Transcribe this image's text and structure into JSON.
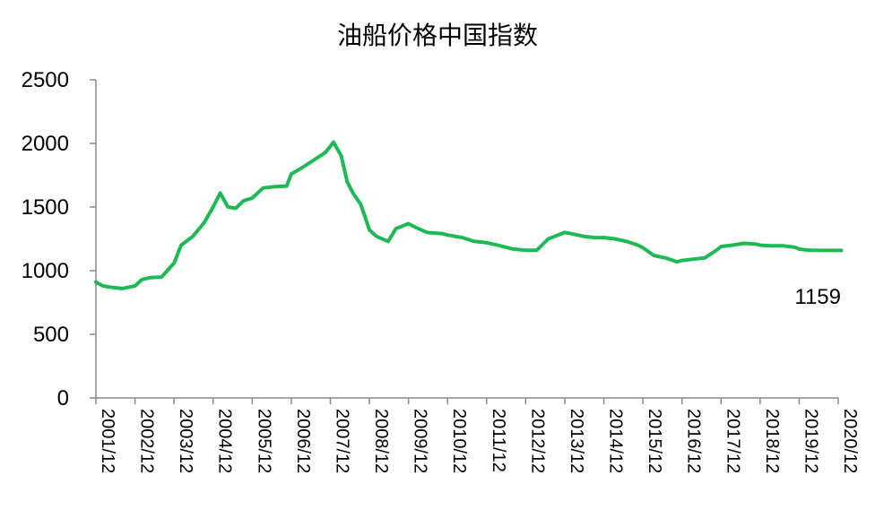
{
  "chart_data": {
    "type": "line",
    "title": "油船价格中国指数",
    "xlabel": "",
    "ylabel": "",
    "ylim": [
      0,
      2500
    ],
    "yticks": [
      "0",
      "500",
      "1000",
      "1500",
      "2000",
      "2500"
    ],
    "categories": [
      "2001/12",
      "2002/12",
      "2003/12",
      "2004/12",
      "2005/12",
      "2006/12",
      "2007/12",
      "2008/12",
      "2009/12",
      "2010/12",
      "2011/12",
      "2012/12",
      "2013/12",
      "2014/12",
      "2015/12",
      "2016/12",
      "2017/12",
      "2018/12",
      "2019/12",
      "2020/12"
    ],
    "grid": false,
    "legend": "none",
    "end_label": "1159",
    "series": [
      {
        "color": "#1db954",
        "x": [
          2001.92,
          2002.1,
          2002.3,
          2002.6,
          2002.92,
          2003.1,
          2003.3,
          2003.6,
          2003.92,
          2004.1,
          2004.4,
          2004.7,
          2004.92,
          2005.1,
          2005.3,
          2005.5,
          2005.7,
          2005.92,
          2006.2,
          2006.5,
          2006.8,
          2006.92,
          2007.2,
          2007.5,
          2007.8,
          2008.0,
          2008.2,
          2008.35,
          2008.5,
          2008.7,
          2008.92,
          2009.1,
          2009.4,
          2009.6,
          2009.92,
          2010.1,
          2010.4,
          2010.8,
          2010.92,
          2011.3,
          2011.6,
          2011.92,
          2012.2,
          2012.6,
          2012.92,
          2013.2,
          2013.5,
          2013.92,
          2014.1,
          2014.4,
          2014.7,
          2014.92,
          2015.2,
          2015.5,
          2015.8,
          2015.92,
          2016.2,
          2016.5,
          2016.8,
          2016.92,
          2017.2,
          2017.5,
          2017.8,
          2017.92,
          2018.2,
          2018.5,
          2018.8,
          2018.92,
          2019.2,
          2019.5,
          2019.8,
          2019.92,
          2020.2,
          2020.5,
          2020.92,
          2021.0
        ],
        "values": [
          910,
          880,
          870,
          860,
          880,
          930,
          945,
          950,
          1060,
          1200,
          1270,
          1380,
          1500,
          1610,
          1500,
          1490,
          1550,
          1570,
          1650,
          1660,
          1665,
          1760,
          1810,
          1870,
          1930,
          2010,
          1900,
          1700,
          1610,
          1520,
          1320,
          1270,
          1230,
          1330,
          1370,
          1340,
          1300,
          1290,
          1280,
          1260,
          1230,
          1220,
          1200,
          1170,
          1160,
          1160,
          1250,
          1300,
          1290,
          1270,
          1260,
          1260,
          1250,
          1230,
          1200,
          1180,
          1120,
          1100,
          1070,
          1080,
          1090,
          1100,
          1160,
          1190,
          1200,
          1215,
          1210,
          1200,
          1195,
          1195,
          1185,
          1170,
          1160,
          1159,
          1159,
          1159
        ]
      }
    ]
  }
}
